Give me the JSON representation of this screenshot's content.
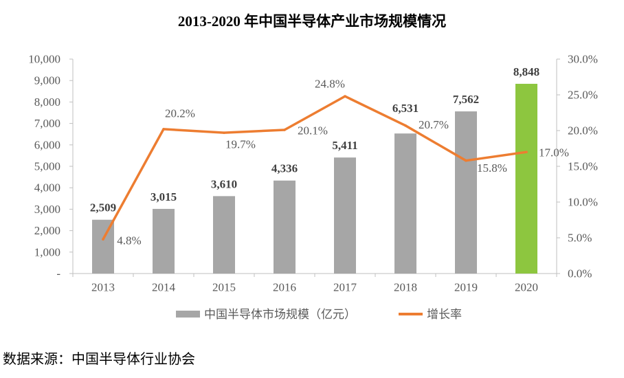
{
  "chart_data": {
    "type": "bar",
    "title": "2013-2020 年中国半导体产业市场规模情况",
    "categories": [
      "2013",
      "2014",
      "2015",
      "2016",
      "2017",
      "2018",
      "2019",
      "2020"
    ],
    "series": [
      {
        "name": "中国半导体市场规模（亿元）",
        "type": "bar",
        "axis": "left",
        "values": [
          2509,
          3015,
          3610,
          4336,
          5411,
          6531,
          7562,
          8848
        ],
        "labels": [
          "2,509",
          "3,015",
          "3,610",
          "4,336",
          "5,411",
          "6,531",
          "7,562",
          "8,848"
        ],
        "color": "#A6A6A6",
        "highlight_color": "#8DC63F",
        "highlight_category": "2020"
      },
      {
        "name": "增长率",
        "type": "line",
        "axis": "right",
        "values": [
          4.8,
          20.2,
          19.7,
          20.1,
          24.8,
          20.7,
          15.8,
          17.0
        ],
        "labels": [
          "4.8%",
          "20.2%",
          "19.7%",
          "20.1%",
          "24.8%",
          "20.7%",
          "15.8%",
          "17.0%"
        ],
        "color": "#ED7D31"
      }
    ],
    "ylim": [
      0,
      10000
    ],
    "y_ticks": [
      {
        "value": 10000,
        "label": "10,000"
      },
      {
        "value": 9000,
        "label": "9,000"
      },
      {
        "value": 8000,
        "label": "8,000"
      },
      {
        "value": 7000,
        "label": "7,000"
      },
      {
        "value": 6000,
        "label": "6,000"
      },
      {
        "value": 5000,
        "label": "5,000"
      },
      {
        "value": 4000,
        "label": "4,000"
      },
      {
        "value": 3000,
        "label": "3,000"
      },
      {
        "value": 2000,
        "label": "2,000"
      },
      {
        "value": 1000,
        "label": "1,000"
      },
      {
        "value": 0,
        "label": "-"
      }
    ],
    "y2lim": [
      0,
      30
    ],
    "y2_ticks": [
      {
        "value": 30,
        "label": "30.0%"
      },
      {
        "value": 25,
        "label": "25.0%"
      },
      {
        "value": 20,
        "label": "20.0%"
      },
      {
        "value": 15,
        "label": "15.0%"
      },
      {
        "value": 10,
        "label": "10.0%"
      },
      {
        "value": 5,
        "label": "5.0%"
      },
      {
        "value": 0,
        "label": "0.0%"
      }
    ],
    "grid": false,
    "legend": "bottom",
    "axis_color": "#BFBFBF"
  },
  "source": "数据来源：中国半导体行业协会"
}
